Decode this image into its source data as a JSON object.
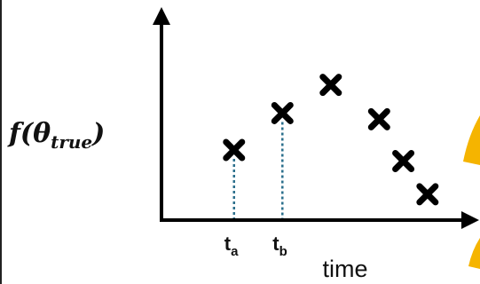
{
  "chart_data": {
    "type": "scatter",
    "title": "",
    "ylabel_main": "f(θ",
    "ylabel_sub": "true",
    "ylabel_close": ")",
    "xlabel": "time",
    "marker": "cross",
    "points": [
      {
        "x": 1.5,
        "y": 2.85
      },
      {
        "x": 2.5,
        "y": 4.35
      },
      {
        "x": 3.5,
        "y": 5.5
      },
      {
        "x": 4.5,
        "y": 4.1
      },
      {
        "x": 5.0,
        "y": 2.4
      },
      {
        "x": 5.5,
        "y": 1.05
      }
    ],
    "dropline_points": [
      0,
      1
    ],
    "ticks": [
      {
        "x": 1.5,
        "main": "t",
        "sub": "a"
      },
      {
        "x": 2.5,
        "main": "t",
        "sub": "b"
      }
    ],
    "xlim": [
      0,
      6.2
    ],
    "ylim": [
      0,
      8.3
    ],
    "grid": false,
    "colors": {
      "axis": "#000000",
      "marker": "#000000",
      "dropline": "#2b6f8c",
      "accent": "#f5b400"
    }
  }
}
